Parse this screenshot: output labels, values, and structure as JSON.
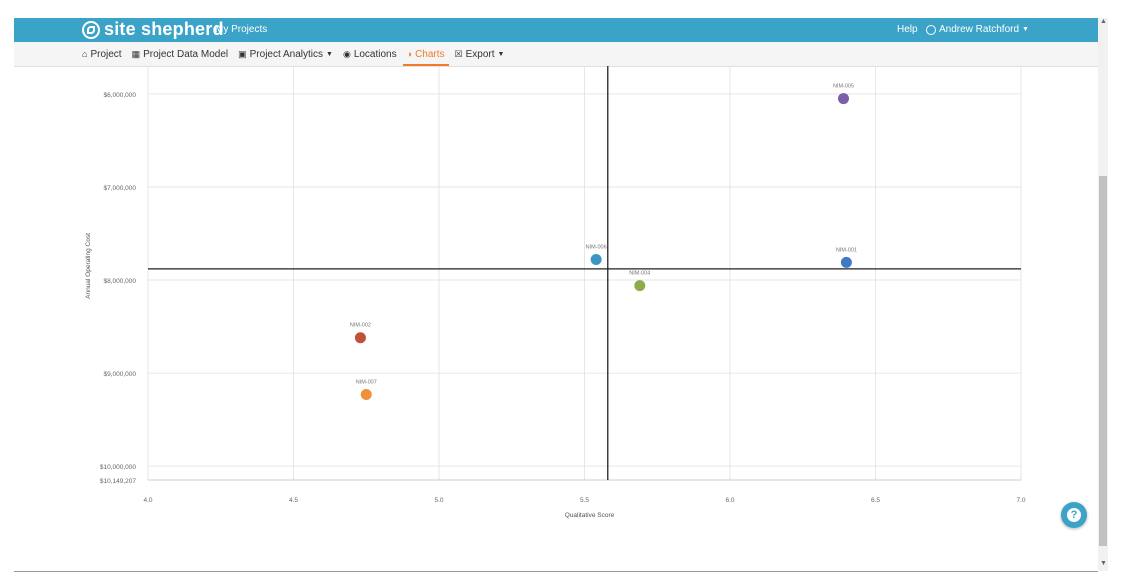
{
  "header": {
    "brand": "site shepherd",
    "my_projects": "My Projects",
    "help": "Help",
    "user": "Andrew Ratchford",
    "colors": {
      "bar": "#3aa3c7",
      "accent": "#f07c2a"
    }
  },
  "subnav": {
    "items": [
      {
        "label": "Project",
        "icon": "building-icon",
        "glyph": "⌂"
      },
      {
        "label": "Project Data Model",
        "icon": "data-model-icon",
        "glyph": "▦"
      },
      {
        "label": "Project Analytics",
        "icon": "analytics-icon",
        "glyph": "▣",
        "dropdown": true
      },
      {
        "label": "Locations",
        "icon": "location-pin-icon",
        "glyph": "◉"
      },
      {
        "label": "Charts",
        "icon": "chart-icon",
        "glyph": "◑",
        "active": true
      },
      {
        "label": "Export",
        "icon": "export-icon",
        "glyph": "☒",
        "dropdown": true
      }
    ]
  },
  "chart_data": {
    "type": "scatter",
    "xlabel": "Qualitative Score",
    "ylabel": "Annual Operating Cost",
    "x_ticks": [
      "4.0",
      "4.5",
      "5.0",
      "5.5",
      "6.0",
      "6.5",
      "7.0"
    ],
    "y_ticks": [
      "$6,000,000",
      "$7,000,000",
      "$8,000,000",
      "$9,000,000",
      "$10,000,000",
      "$10,149,207"
    ],
    "xlim": [
      4.0,
      7.0
    ],
    "ylim_reversed": [
      5700000,
      10149207
    ],
    "quadrant_lines": {
      "x": 5.58,
      "y": 7880000
    },
    "points": [
      {
        "label": "NIM-005",
        "x": 6.39,
        "y": 6050000,
        "color": "#7b5fa8"
      },
      {
        "label": "NIM-006",
        "x": 5.54,
        "y": 7780000,
        "color": "#3a97c4"
      },
      {
        "label": "NIM-001",
        "x": 6.4,
        "y": 7810000,
        "color": "#3f78c4"
      },
      {
        "label": "NIM-004",
        "x": 5.69,
        "y": 8060000,
        "color": "#8faa4a"
      },
      {
        "label": "NIM-002",
        "x": 4.73,
        "y": 8620000,
        "color": "#c0503a"
      },
      {
        "label": "NIM-007",
        "x": 4.75,
        "y": 9230000,
        "color": "#f0913a"
      }
    ]
  }
}
